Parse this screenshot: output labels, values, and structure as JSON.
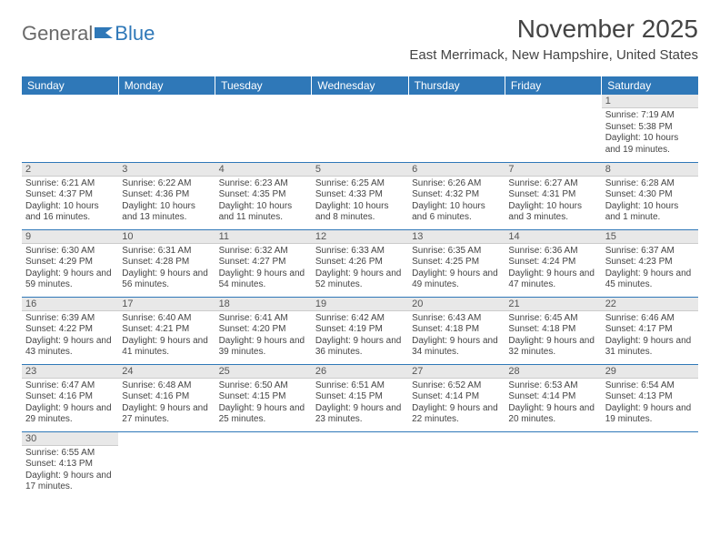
{
  "logo": {
    "part1": "General",
    "part2": "Blue"
  },
  "title": "November 2025",
  "subtitle": "East Merrimack, New Hampshire, United States",
  "colors": {
    "accent": "#2f78b8",
    "header_bg": "#e8e8e8",
    "text": "#444444",
    "background": "#ffffff"
  },
  "calendar": {
    "weekdays": [
      "Sunday",
      "Monday",
      "Tuesday",
      "Wednesday",
      "Thursday",
      "Friday",
      "Saturday"
    ],
    "first_weekday_index": 6,
    "days": [
      {
        "n": "1",
        "sunrise": "7:19 AM",
        "sunset": "5:38 PM",
        "daylight": "10 hours and 19 minutes."
      },
      {
        "n": "2",
        "sunrise": "6:21 AM",
        "sunset": "4:37 PM",
        "daylight": "10 hours and 16 minutes."
      },
      {
        "n": "3",
        "sunrise": "6:22 AM",
        "sunset": "4:36 PM",
        "daylight": "10 hours and 13 minutes."
      },
      {
        "n": "4",
        "sunrise": "6:23 AM",
        "sunset": "4:35 PM",
        "daylight": "10 hours and 11 minutes."
      },
      {
        "n": "5",
        "sunrise": "6:25 AM",
        "sunset": "4:33 PM",
        "daylight": "10 hours and 8 minutes."
      },
      {
        "n": "6",
        "sunrise": "6:26 AM",
        "sunset": "4:32 PM",
        "daylight": "10 hours and 6 minutes."
      },
      {
        "n": "7",
        "sunrise": "6:27 AM",
        "sunset": "4:31 PM",
        "daylight": "10 hours and 3 minutes."
      },
      {
        "n": "8",
        "sunrise": "6:28 AM",
        "sunset": "4:30 PM",
        "daylight": "10 hours and 1 minute."
      },
      {
        "n": "9",
        "sunrise": "6:30 AM",
        "sunset": "4:29 PM",
        "daylight": "9 hours and 59 minutes."
      },
      {
        "n": "10",
        "sunrise": "6:31 AM",
        "sunset": "4:28 PM",
        "daylight": "9 hours and 56 minutes."
      },
      {
        "n": "11",
        "sunrise": "6:32 AM",
        "sunset": "4:27 PM",
        "daylight": "9 hours and 54 minutes."
      },
      {
        "n": "12",
        "sunrise": "6:33 AM",
        "sunset": "4:26 PM",
        "daylight": "9 hours and 52 minutes."
      },
      {
        "n": "13",
        "sunrise": "6:35 AM",
        "sunset": "4:25 PM",
        "daylight": "9 hours and 49 minutes."
      },
      {
        "n": "14",
        "sunrise": "6:36 AM",
        "sunset": "4:24 PM",
        "daylight": "9 hours and 47 minutes."
      },
      {
        "n": "15",
        "sunrise": "6:37 AM",
        "sunset": "4:23 PM",
        "daylight": "9 hours and 45 minutes."
      },
      {
        "n": "16",
        "sunrise": "6:39 AM",
        "sunset": "4:22 PM",
        "daylight": "9 hours and 43 minutes."
      },
      {
        "n": "17",
        "sunrise": "6:40 AM",
        "sunset": "4:21 PM",
        "daylight": "9 hours and 41 minutes."
      },
      {
        "n": "18",
        "sunrise": "6:41 AM",
        "sunset": "4:20 PM",
        "daylight": "9 hours and 39 minutes."
      },
      {
        "n": "19",
        "sunrise": "6:42 AM",
        "sunset": "4:19 PM",
        "daylight": "9 hours and 36 minutes."
      },
      {
        "n": "20",
        "sunrise": "6:43 AM",
        "sunset": "4:18 PM",
        "daylight": "9 hours and 34 minutes."
      },
      {
        "n": "21",
        "sunrise": "6:45 AM",
        "sunset": "4:18 PM",
        "daylight": "9 hours and 32 minutes."
      },
      {
        "n": "22",
        "sunrise": "6:46 AM",
        "sunset": "4:17 PM",
        "daylight": "9 hours and 31 minutes."
      },
      {
        "n": "23",
        "sunrise": "6:47 AM",
        "sunset": "4:16 PM",
        "daylight": "9 hours and 29 minutes."
      },
      {
        "n": "24",
        "sunrise": "6:48 AM",
        "sunset": "4:16 PM",
        "daylight": "9 hours and 27 minutes."
      },
      {
        "n": "25",
        "sunrise": "6:50 AM",
        "sunset": "4:15 PM",
        "daylight": "9 hours and 25 minutes."
      },
      {
        "n": "26",
        "sunrise": "6:51 AM",
        "sunset": "4:15 PM",
        "daylight": "9 hours and 23 minutes."
      },
      {
        "n": "27",
        "sunrise": "6:52 AM",
        "sunset": "4:14 PM",
        "daylight": "9 hours and 22 minutes."
      },
      {
        "n": "28",
        "sunrise": "6:53 AM",
        "sunset": "4:14 PM",
        "daylight": "9 hours and 20 minutes."
      },
      {
        "n": "29",
        "sunrise": "6:54 AM",
        "sunset": "4:13 PM",
        "daylight": "9 hours and 19 minutes."
      },
      {
        "n": "30",
        "sunrise": "6:55 AM",
        "sunset": "4:13 PM",
        "daylight": "9 hours and 17 minutes."
      }
    ],
    "labels": {
      "sunrise": "Sunrise: ",
      "sunset": "Sunset: ",
      "daylight": "Daylight: "
    }
  }
}
